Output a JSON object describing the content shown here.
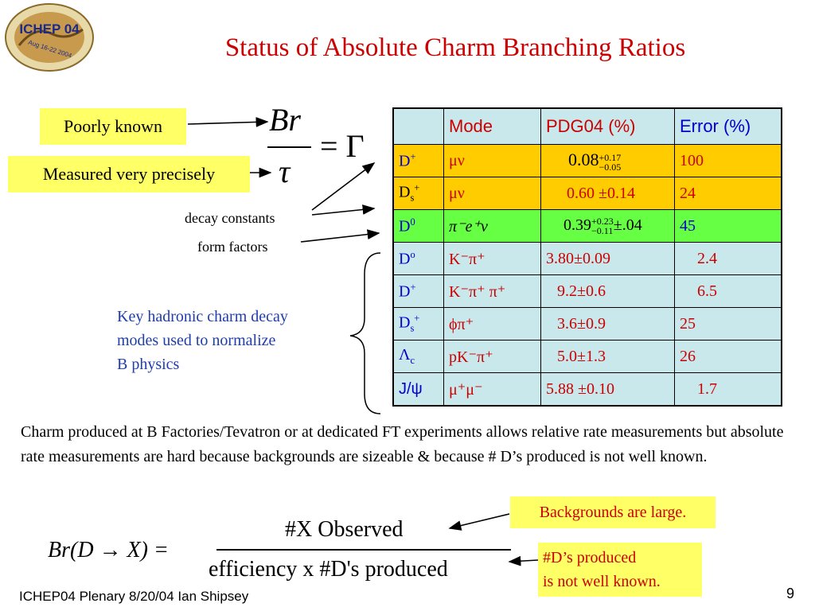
{
  "logo": {
    "line1": "ICHEP 04",
    "line2": "Aug 16-22 2004"
  },
  "title": "Status of Absolute Charm Branching Ratios",
  "formula_top": {
    "numerator": "Br",
    "denominator": "τ",
    "rhs": "= Γ"
  },
  "labels": {
    "poorly_known": "Poorly known",
    "measured_precisely": "Measured very precisely",
    "decay_constants": "decay constants",
    "form_factors": "form factors",
    "key_line1": "Key hadronic charm decay",
    "key_line2": "modes used to normalize",
    "key_line3": "B physics"
  },
  "table": {
    "headers": [
      "",
      "Mode",
      "PDG04 (%)",
      "Error (%)"
    ],
    "rows": [
      {
        "particle": "D",
        "particle_sup": "+",
        "particle_sub": "",
        "mode": "μν",
        "pdg": "0.08",
        "pdg_sup": "+0.17",
        "pdg_sub": "−0.05",
        "pdg_tail": "",
        "error": "100"
      },
      {
        "particle": "D",
        "particle_sup": "+",
        "particle_sub": "s",
        "mode": "μν",
        "pdg": "0.60 ±0.14",
        "pdg_sup": "",
        "pdg_sub": "",
        "pdg_tail": "",
        "error": "24"
      },
      {
        "particle": "D",
        "particle_sup": "0",
        "particle_sub": "",
        "mode": "π⁻e⁺ν",
        "pdg": "0.39",
        "pdg_sup": "+0.23",
        "pdg_sub": "−0.11",
        "pdg_tail": "±.04",
        "error": "45"
      },
      {
        "particle": "D",
        "particle_sup": "o",
        "particle_sub": "",
        "mode": "K⁻π⁺",
        "pdg": "3.80±0.09",
        "pdg_sup": "",
        "pdg_sub": "",
        "pdg_tail": "",
        "error": "2.4"
      },
      {
        "particle": "D",
        "particle_sup": "+",
        "particle_sub": "",
        "mode": "K⁻π⁺ π⁺",
        "pdg": "9.2±0.6",
        "pdg_sup": "",
        "pdg_sub": "",
        "pdg_tail": "",
        "error": "6.5"
      },
      {
        "particle": "D",
        "particle_sup": "+",
        "particle_sub": "s",
        "mode": "ϕπ⁺",
        "pdg": "3.6±0.9",
        "pdg_sup": "",
        "pdg_sub": "",
        "pdg_tail": "",
        "error": "25"
      },
      {
        "particle": "Λ",
        "particle_sup": "",
        "particle_sub": "c",
        "mode": "pK⁻π⁺",
        "pdg": "5.0±1.3",
        "pdg_sup": "",
        "pdg_sub": "",
        "pdg_tail": "",
        "error": "26"
      },
      {
        "particle": "J/ψ",
        "particle_sup": "",
        "particle_sub": "",
        "mode": "μ⁺μ⁻",
        "pdg": "5.88 ±0.10",
        "pdg_sup": "",
        "pdg_sub": "",
        "pdg_tail": "",
        "error": "1.7"
      }
    ]
  },
  "paragraph": "Charm produced at B Factories/Tevatron or at dedicated FT experiments allows relative rate measurements but absolute rate measurements are hard because backgrounds are sizeable  & because # D’s produced is not well known.",
  "bottom_formula": {
    "lhs": "Br(D → X) =",
    "numerator": "#X Observed",
    "denominator": "efficiency x #D's produced"
  },
  "callouts": {
    "backgrounds": "Backgrounds are large.",
    "dprod_line1": "#D’s produced",
    "dprod_line2": "is not well known."
  },
  "footer": "ICHEP04 Plenary 8/20/04 Ian Shipsey",
  "page_number": "9",
  "colors": {
    "title": "#cc0000",
    "key_text": "#1f3dab",
    "callout_bg": "#ffff66",
    "row_orange": "#ffcc00",
    "row_green": "#66ff44",
    "row_blue": "#c8e8ec"
  }
}
